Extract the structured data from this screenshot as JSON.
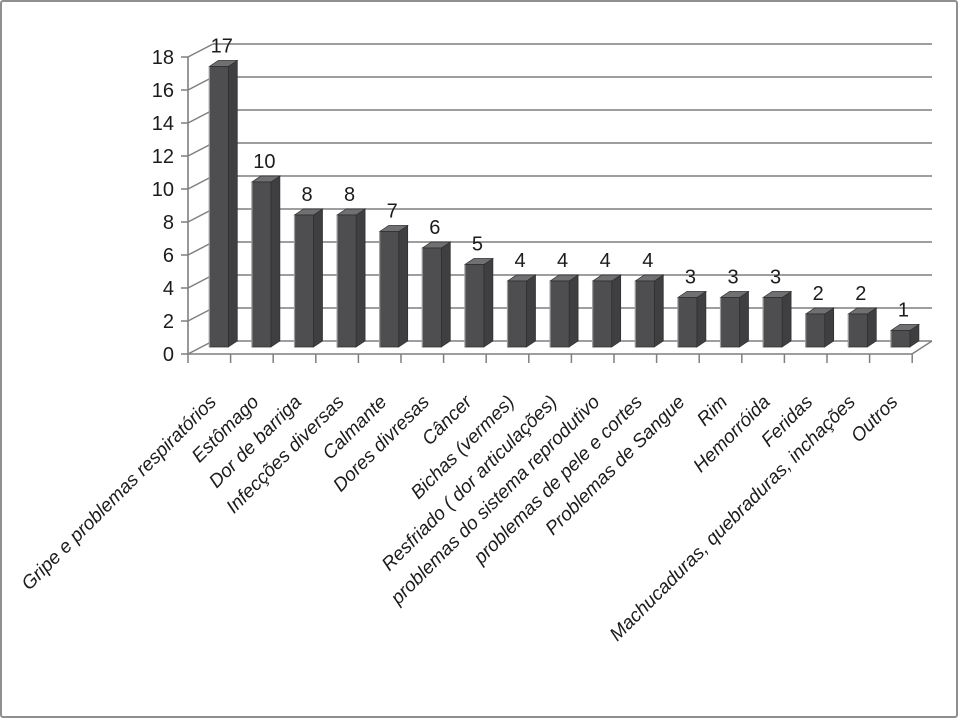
{
  "chart_data": {
    "type": "bar",
    "style": "3d-column",
    "title": "",
    "xlabel": "",
    "ylabel": "",
    "categories": [
      "Gripe e problemas respiratórios",
      "Estômago",
      "Dor de barriga",
      "Infecções diversas",
      "Calmante",
      "Dores divresas",
      "Câncer",
      "Bichas (vermes)",
      "Resfriado ( dor articulações)",
      "problemas do sistema reprodutivo",
      "problemas de pele e cortes",
      "Problemas de Sangue",
      "Rim",
      "Hemorróida",
      "Feridas",
      "Machucaduras, quebraduras,  inchações",
      "Outros"
    ],
    "values": [
      17,
      10,
      8,
      8,
      7,
      6,
      5,
      4,
      4,
      4,
      4,
      3,
      3,
      3,
      2,
      2,
      1
    ],
    "data_labels": [
      17,
      10,
      8,
      8,
      7,
      6,
      5,
      4,
      4,
      4,
      4,
      3,
      3,
      3,
      2,
      2,
      1
    ],
    "ylim": [
      0,
      18
    ],
    "yticks": [
      0,
      2,
      4,
      6,
      8,
      10,
      12,
      14,
      16,
      18
    ],
    "grid": true,
    "legend": "none",
    "category_label_rotation_deg": 45,
    "colors": {
      "bar_front": "#4e4e50",
      "bar_top": "#707072",
      "bar_side": "#3f3f41",
      "bar_edge": "#2e2e30",
      "bar_highlight": "#9b9b9d",
      "gridline": "#7f7f7f",
      "axis": "#7f7f7f",
      "text": "#1c1c1c",
      "background": "#ffffff",
      "frame_border": "#8f8f8f"
    }
  }
}
